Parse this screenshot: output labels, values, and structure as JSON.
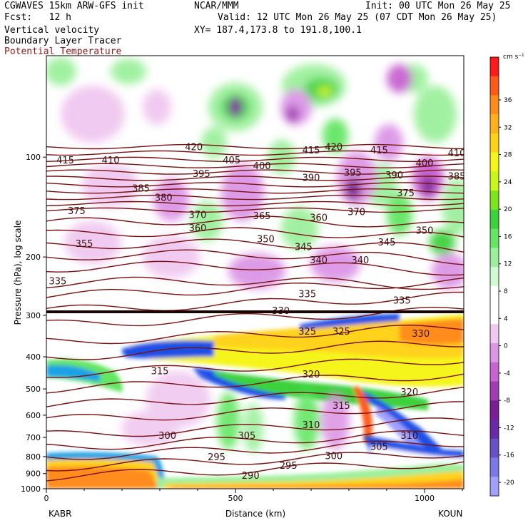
{
  "header": {
    "model": "CGWAVES 15km ARW-GFS init",
    "center": "NCAR/MMM",
    "init": "Init: 00 UTC Mon 26 May 25",
    "fcst": "Fcst:   12 h",
    "valid": "Valid: 12 UTC Mon 26 May 25 (07 CDT Mon 26 May 25)",
    "field1": "Vertical velocity",
    "field2": "Boundary Layer Tracer",
    "field3": "Potential Temperature",
    "xy": "XY= 187.4,173.8 to 191.8,100.1"
  },
  "colors": {
    "theta_contour": "#7a1010",
    "field3_text": "#8b1a1a"
  },
  "chart_data": {
    "type": "heatmap",
    "xlabel": "Distance (km)",
    "ylabel": "Pressure (hPa), log scale",
    "x_ticks": [
      0,
      500,
      1000
    ],
    "xlim": [
      0,
      1110
    ],
    "y_ticks": [
      100,
      200,
      300,
      400,
      500,
      600,
      700,
      800,
      900,
      1000
    ],
    "ylim": [
      1000,
      50
    ],
    "y_scale": "log",
    "endpoints": {
      "left": "KABR",
      "right": "KOUN"
    },
    "colorbar": {
      "units": "cm s⁻¹",
      "ticks": [
        36,
        32,
        28,
        24,
        20,
        16,
        12,
        8,
        4,
        0,
        -4,
        -8,
        -12,
        -16,
        -20
      ],
      "colors": [
        "#ff1a1a",
        "#ff5a1a",
        "#ff8c1a",
        "#ffb01a",
        "#ffd21a",
        "#f5f51a",
        "#c8f51a",
        "#7ce61a",
        "#3cd23c",
        "#64e664",
        "#9cf09c",
        "#d2fad2",
        "#ffffff",
        "#ffffff",
        "#f0c8f0",
        "#dc96e6",
        "#c864d2",
        "#a03cb4",
        "#7a1e96",
        "#6a2aa8",
        "#6a50c8",
        "#7a7ae6",
        "#a0a0ff"
      ]
    },
    "theta_labels": [
      {
        "v": "415",
        "x": 50,
        "p": 102
      },
      {
        "v": "410",
        "x": 170,
        "p": 102
      },
      {
        "v": "420",
        "x": 390,
        "p": 93
      },
      {
        "v": "405",
        "x": 490,
        "p": 102
      },
      {
        "v": "400",
        "x": 570,
        "p": 106
      },
      {
        "v": "395",
        "x": 410,
        "p": 112
      },
      {
        "v": "415",
        "x": 700,
        "p": 95
      },
      {
        "v": "420",
        "x": 760,
        "p": 93
      },
      {
        "v": "415",
        "x": 880,
        "p": 95
      },
      {
        "v": "410",
        "x": 1085,
        "p": 97
      },
      {
        "v": "400",
        "x": 1000,
        "p": 104
      },
      {
        "v": "385",
        "x": 1085,
        "p": 114
      },
      {
        "v": "390",
        "x": 700,
        "p": 115
      },
      {
        "v": "395",
        "x": 810,
        "p": 111
      },
      {
        "v": "390",
        "x": 920,
        "p": 113
      },
      {
        "v": "385",
        "x": 250,
        "p": 124
      },
      {
        "v": "380",
        "x": 310,
        "p": 132
      },
      {
        "v": "375",
        "x": 950,
        "p": 128
      },
      {
        "v": "375",
        "x": 80,
        "p": 145
      },
      {
        "v": "370",
        "x": 400,
        "p": 149
      },
      {
        "v": "365",
        "x": 570,
        "p": 150
      },
      {
        "v": "360",
        "x": 720,
        "p": 152
      },
      {
        "v": "370",
        "x": 820,
        "p": 146
      },
      {
        "v": "360",
        "x": 400,
        "p": 163
      },
      {
        "v": "355",
        "x": 100,
        "p": 182
      },
      {
        "v": "350",
        "x": 580,
        "p": 176
      },
      {
        "v": "345",
        "x": 680,
        "p": 186
      },
      {
        "v": "350",
        "x": 1000,
        "p": 166
      },
      {
        "v": "345",
        "x": 900,
        "p": 180
      },
      {
        "v": "340",
        "x": 720,
        "p": 204
      },
      {
        "v": "340",
        "x": 830,
        "p": 204
      },
      {
        "v": "335",
        "x": 30,
        "p": 236
      },
      {
        "v": "335",
        "x": 690,
        "p": 258
      },
      {
        "v": "335",
        "x": 940,
        "p": 270
      },
      {
        "v": "330",
        "x": 620,
        "p": 290
      },
      {
        "v": "330",
        "x": 990,
        "p": 340
      },
      {
        "v": "325",
        "x": 690,
        "p": 335
      },
      {
        "v": "325",
        "x": 780,
        "p": 335
      },
      {
        "v": "320",
        "x": 700,
        "p": 450
      },
      {
        "v": "320",
        "x": 960,
        "p": 510
      },
      {
        "v": "315",
        "x": 300,
        "p": 440
      },
      {
        "v": "315",
        "x": 780,
        "p": 560
      },
      {
        "v": "310",
        "x": 700,
        "p": 640
      },
      {
        "v": "310",
        "x": 960,
        "p": 690
      },
      {
        "v": "305",
        "x": 530,
        "p": 690
      },
      {
        "v": "305",
        "x": 880,
        "p": 745
      },
      {
        "v": "300",
        "x": 320,
        "p": 690
      },
      {
        "v": "300",
        "x": 760,
        "p": 795
      },
      {
        "v": "295",
        "x": 450,
        "p": 800
      },
      {
        "v": "295",
        "x": 640,
        "p": 850
      },
      {
        "v": "290",
        "x": 540,
        "p": 910
      }
    ]
  }
}
